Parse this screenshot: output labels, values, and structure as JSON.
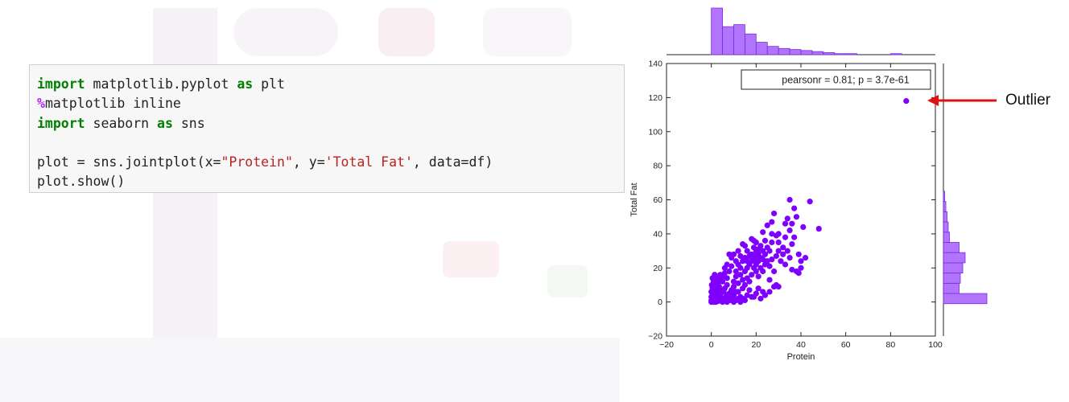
{
  "code_cell": {
    "lines": [
      [
        {
          "t": "import",
          "c": "kw"
        },
        {
          "t": " matplotlib.pyplot "
        },
        {
          "t": "as",
          "c": "kw"
        },
        {
          "t": " plt"
        }
      ],
      [
        {
          "t": "%",
          "c": "magic"
        },
        {
          "t": "matplotlib inline"
        }
      ],
      [
        {
          "t": "import",
          "c": "kw"
        },
        {
          "t": " seaborn "
        },
        {
          "t": "as",
          "c": "kw"
        },
        {
          "t": " sns"
        }
      ],
      [],
      [
        {
          "t": "plot = sns.jointplot(x="
        },
        {
          "t": "\"Protein\"",
          "c": "str"
        },
        {
          "t": ", y="
        },
        {
          "t": "'Total Fat'",
          "c": "str"
        },
        {
          "t": ", data=df)"
        }
      ],
      [
        {
          "t": "plot.show()"
        }
      ]
    ]
  },
  "annotation": {
    "label": "Outlier",
    "arrow_color": "#e01010"
  },
  "chart_data": {
    "type": "scatter",
    "xlabel": "Protein",
    "ylabel": "Total Fat",
    "xlim": [
      -20,
      100
    ],
    "ylim": [
      -20,
      140
    ],
    "xticks": [
      -20,
      0,
      20,
      40,
      60,
      80,
      100
    ],
    "yticks": [
      -20,
      0,
      20,
      40,
      60,
      80,
      100,
      120,
      140
    ],
    "point_color": "#7f00ff",
    "hist_color": "#a35cff",
    "stat_box": "pearsonr = 0.81; p = 3.7e-61",
    "grid": false,
    "points": [
      [
        0,
        0
      ],
      [
        0.5,
        0.5
      ],
      [
        1,
        0
      ],
      [
        1.5,
        1
      ],
      [
        2,
        0
      ],
      [
        2.5,
        1
      ],
      [
        3,
        0.5
      ],
      [
        0,
        1
      ],
      [
        0.5,
        2
      ],
      [
        1,
        1.5
      ],
      [
        0,
        3
      ],
      [
        0.5,
        4
      ],
      [
        1,
        5
      ],
      [
        0,
        6
      ],
      [
        0.5,
        8
      ],
      [
        1,
        9
      ],
      [
        0.2,
        10
      ],
      [
        1,
        12
      ],
      [
        0.5,
        14
      ],
      [
        1.5,
        16
      ],
      [
        2,
        3
      ],
      [
        2.5,
        5
      ],
      [
        3,
        7
      ],
      [
        3.5,
        9
      ],
      [
        4,
        4
      ],
      [
        4.5,
        2
      ],
      [
        5,
        1
      ],
      [
        5.5,
        6
      ],
      [
        6,
        8
      ],
      [
        6.5,
        3
      ],
      [
        3,
        11
      ],
      [
        4,
        13
      ],
      [
        5,
        12
      ],
      [
        5,
        15
      ],
      [
        6,
        17
      ],
      [
        7,
        14
      ],
      [
        7,
        10
      ],
      [
        8,
        5
      ],
      [
        8,
        2
      ],
      [
        9,
        1
      ],
      [
        9,
        7
      ],
      [
        10,
        4
      ],
      [
        10,
        9
      ],
      [
        10,
        12
      ],
      [
        11,
        15
      ],
      [
        11,
        18
      ],
      [
        12,
        6
      ],
      [
        12,
        11
      ],
      [
        12,
        22
      ],
      [
        13,
        16
      ],
      [
        13,
        20
      ],
      [
        14,
        8
      ],
      [
        14,
        13
      ],
      [
        14,
        24
      ],
      [
        15,
        10
      ],
      [
        15,
        18
      ],
      [
        15,
        26
      ],
      [
        16,
        14
      ],
      [
        16,
        20
      ],
      [
        16,
        30
      ],
      [
        17,
        12
      ],
      [
        17,
        22
      ],
      [
        17,
        27
      ],
      [
        18,
        16
      ],
      [
        18,
        24
      ],
      [
        18,
        28
      ],
      [
        19,
        20
      ],
      [
        19,
        25
      ],
      [
        19,
        32
      ],
      [
        20,
        18
      ],
      [
        20,
        22
      ],
      [
        20,
        27
      ],
      [
        20,
        30
      ],
      [
        21,
        15
      ],
      [
        21,
        24
      ],
      [
        21,
        28
      ],
      [
        22,
        20
      ],
      [
        22,
        26
      ],
      [
        22,
        33
      ],
      [
        23,
        18
      ],
      [
        23,
        25
      ],
      [
        23,
        30
      ],
      [
        24,
        22
      ],
      [
        24,
        28
      ],
      [
        25,
        24
      ],
      [
        25,
        32
      ],
      [
        26,
        21
      ],
      [
        26,
        30
      ],
      [
        27,
        25
      ],
      [
        27,
        35
      ],
      [
        12,
        30
      ],
      [
        14,
        34
      ],
      [
        18,
        37
      ],
      [
        20,
        35
      ],
      [
        10,
        28
      ],
      [
        9,
        26
      ],
      [
        7,
        22
      ],
      [
        8,
        18
      ],
      [
        6,
        20
      ],
      [
        4,
        16
      ],
      [
        2,
        12
      ],
      [
        3,
        14
      ],
      [
        10,
        0
      ],
      [
        12,
        2
      ],
      [
        15,
        1
      ],
      [
        18,
        3
      ],
      [
        20,
        5
      ],
      [
        22,
        2
      ],
      [
        24,
        4
      ],
      [
        26,
        6
      ],
      [
        28,
        9
      ],
      [
        29,
        10
      ],
      [
        30,
        9
      ],
      [
        26,
        13
      ],
      [
        28,
        18
      ],
      [
        29,
        27
      ],
      [
        30,
        30
      ],
      [
        30,
        35
      ],
      [
        31,
        24
      ],
      [
        32,
        28
      ],
      [
        32,
        32
      ],
      [
        33,
        22
      ],
      [
        33,
        38
      ],
      [
        34,
        30
      ],
      [
        35,
        26
      ],
      [
        35,
        42
      ],
      [
        36,
        34
      ],
      [
        36,
        46
      ],
      [
        37,
        38
      ],
      [
        37,
        55
      ],
      [
        35,
        60
      ],
      [
        38,
        50
      ],
      [
        39,
        28
      ],
      [
        40,
        20
      ],
      [
        40,
        24
      ],
      [
        41,
        44
      ],
      [
        42,
        26
      ],
      [
        44,
        59
      ],
      [
        48,
        43
      ],
      [
        36,
        19
      ],
      [
        38,
        18
      ],
      [
        39,
        17
      ],
      [
        27,
        47
      ],
      [
        28,
        52
      ],
      [
        34,
        49
      ],
      [
        33,
        46
      ],
      [
        25,
        45
      ],
      [
        29,
        39
      ],
      [
        30,
        40
      ],
      [
        23,
        41
      ],
      [
        27,
        40
      ],
      [
        24,
        36
      ],
      [
        19,
        36
      ],
      [
        15,
        33
      ],
      [
        13,
        27
      ],
      [
        11,
        24
      ],
      [
        9,
        21
      ],
      [
        8,
        28
      ],
      [
        16,
        24
      ],
      [
        21,
        31
      ],
      [
        5,
        0
      ],
      [
        6,
        1
      ],
      [
        7,
        0
      ],
      [
        8,
        1
      ],
      [
        11,
        1
      ],
      [
        13,
        0
      ],
      [
        14,
        2
      ],
      [
        16,
        4
      ],
      [
        17,
        7
      ],
      [
        19,
        3
      ],
      [
        21,
        8
      ],
      [
        23,
        6
      ],
      [
        3,
        2
      ],
      [
        4,
        7
      ],
      [
        2,
        8
      ],
      [
        1,
        7
      ],
      [
        7,
        4
      ],
      [
        9,
        3
      ],
      [
        11,
        6
      ],
      [
        13,
        3
      ],
      [
        87,
        118
      ]
    ],
    "top_hist_counts": [
      45,
      27,
      29,
      20,
      12,
      8,
      6,
      5,
      4,
      3,
      2,
      1,
      1,
      0,
      0,
      0,
      1
    ],
    "top_hist_bins": [
      0,
      5,
      10,
      15,
      20,
      25,
      30,
      35,
      40,
      45,
      50,
      55,
      60,
      65,
      70,
      75,
      80,
      85
    ],
    "right_hist_counts": [
      36,
      13,
      14,
      16,
      18,
      13,
      5,
      4,
      3,
      2,
      1
    ],
    "right_hist_bins": [
      -1,
      5,
      11,
      17,
      23,
      29,
      35,
      41,
      47,
      53,
      59,
      65
    ]
  }
}
